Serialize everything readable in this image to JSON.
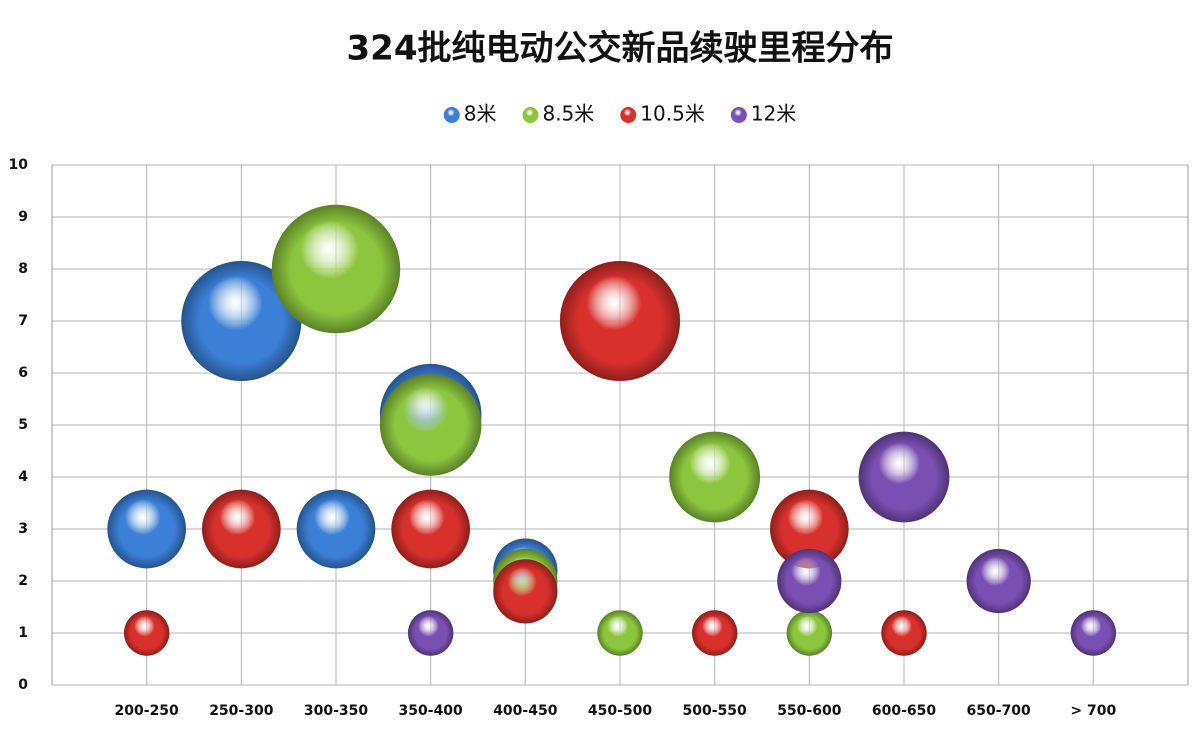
{
  "chart_data": {
    "type": "bubble",
    "title": "324批纯电动公交新品续驶里程分布",
    "categories": [
      "200-250",
      "250-300",
      "300-350",
      "350-400",
      "400-450",
      "450-500",
      "500-550",
      "550-600",
      "600-650",
      "650-700",
      "> 700"
    ],
    "ylim": [
      0,
      10
    ],
    "yticks": [
      0,
      1,
      2,
      3,
      4,
      5,
      6,
      7,
      8,
      9,
      10
    ],
    "grid": true,
    "legend": "top",
    "series": [
      {
        "name": "8米",
        "color": "#3b7fd6",
        "x": [
          "200-250",
          "250-300",
          "300-350",
          "350-400",
          "400-450"
        ],
        "values": [
          3,
          7,
          3,
          5.2,
          2.2
        ],
        "sizes": [
          3,
          7,
          3,
          5,
          2
        ]
      },
      {
        "name": "8.5米",
        "color": "#8cc63e",
        "x": [
          "300-350",
          "350-400",
          "400-450",
          "450-500",
          "500-550",
          "550-600"
        ],
        "values": [
          8,
          5,
          2,
          1,
          4,
          1
        ],
        "sizes": [
          8,
          5,
          2,
          1,
          4,
          1
        ]
      },
      {
        "name": "10.5米",
        "color": "#d8302c",
        "x": [
          "200-250",
          "250-300",
          "350-400",
          "400-450",
          "450-500",
          "500-550",
          "550-600",
          "600-650"
        ],
        "values": [
          1,
          3,
          3,
          1.8,
          7,
          1,
          3,
          1
        ],
        "sizes": [
          1,
          3,
          3,
          2,
          7,
          1,
          3,
          1
        ]
      },
      {
        "name": "12米",
        "color": "#7a4fb3",
        "x": [
          "350-400",
          "550-600",
          "600-650",
          "650-700",
          "> 700"
        ],
        "values": [
          1,
          2,
          4,
          2,
          1
        ],
        "sizes": [
          1,
          2,
          4,
          2,
          1
        ]
      }
    ]
  }
}
